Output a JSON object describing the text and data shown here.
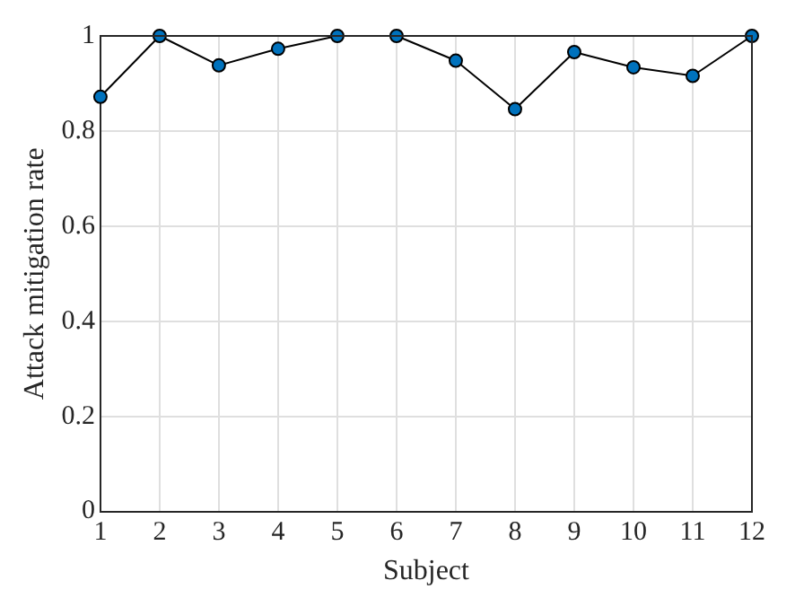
{
  "chart_data": {
    "type": "line",
    "xlabel": "Subject",
    "ylabel": "Attack mitigation rate",
    "x": [
      1,
      2,
      3,
      4,
      5,
      6,
      7,
      8,
      9,
      10,
      11,
      12
    ],
    "series": [
      {
        "color": "#0072bd",
        "values": [
          0.872,
          1,
          0.938,
          0.973,
          1,
          1,
          0.948,
          0.846,
          0.966,
          0.934,
          0.916,
          1
        ]
      }
    ],
    "xlim": [
      1,
      12
    ],
    "xticks": [
      1,
      2,
      3,
      4,
      5,
      6,
      7,
      8,
      9,
      10,
      11,
      12
    ],
    "ylim": [
      0,
      1
    ],
    "yticks": [
      0,
      0.2,
      0.4,
      0.6,
      0.8,
      1
    ],
    "grid": true,
    "legend": false,
    "marker": "circle",
    "line_style": "solid"
  }
}
